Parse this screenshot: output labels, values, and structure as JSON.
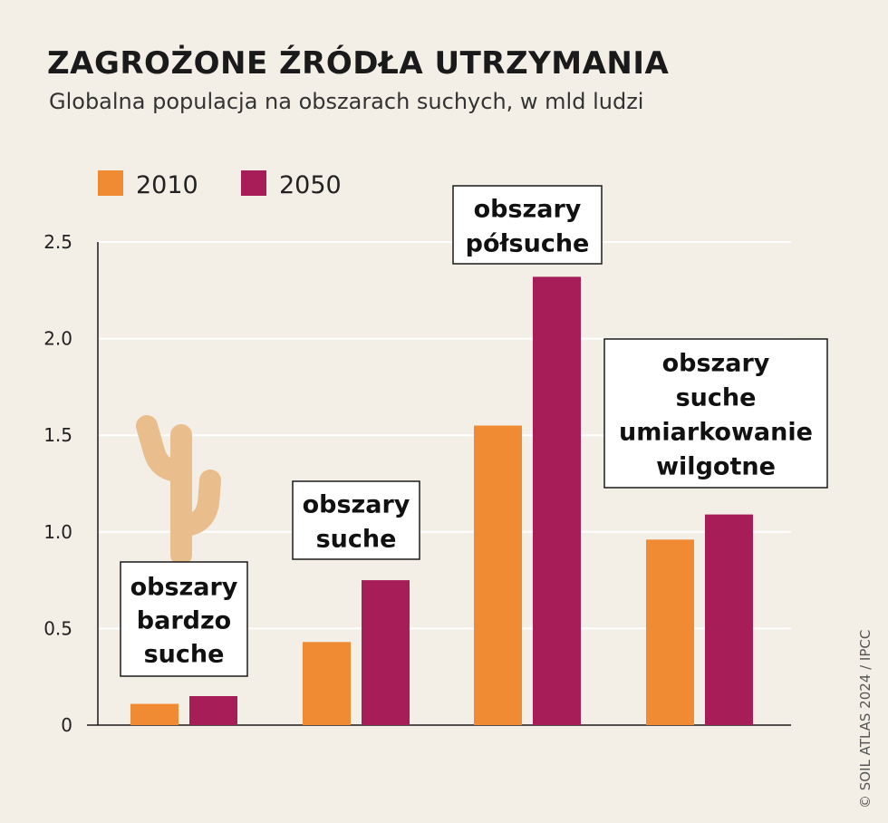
{
  "chart_data": {
    "type": "bar",
    "title": "ZAGROŻONE ŹRÓDŁA UTRZYMANIA",
    "subtitle": "Globalna populacja na obszarach suchych, w mld ludzi",
    "categories": [
      [
        "obszary",
        "bardzo",
        "suche"
      ],
      [
        "obszary",
        "suche"
      ],
      [
        "obszary",
        "półsuche"
      ],
      [
        "obszary",
        "suche",
        "umiarkowanie",
        "wilgotne"
      ]
    ],
    "series": [
      {
        "name": "2010",
        "color": "#f08a33",
        "values": [
          0.11,
          0.43,
          1.55,
          0.96
        ]
      },
      {
        "name": "2050",
        "color": "#a71d57",
        "values": [
          0.15,
          0.75,
          2.32,
          1.09
        ]
      }
    ],
    "ylim": [
      0,
      2.5
    ],
    "yticks": [
      "0",
      "0.5",
      "1.0",
      "1.5",
      "2.0",
      "2.5"
    ],
    "ytick_values": [
      0,
      0.5,
      1.0,
      1.5,
      2.0,
      2.5
    ],
    "grid": true,
    "legend": "top-left",
    "decoration": "cactus-icon"
  },
  "credit": "© SOIL ATLAS 2024 / IPCC"
}
